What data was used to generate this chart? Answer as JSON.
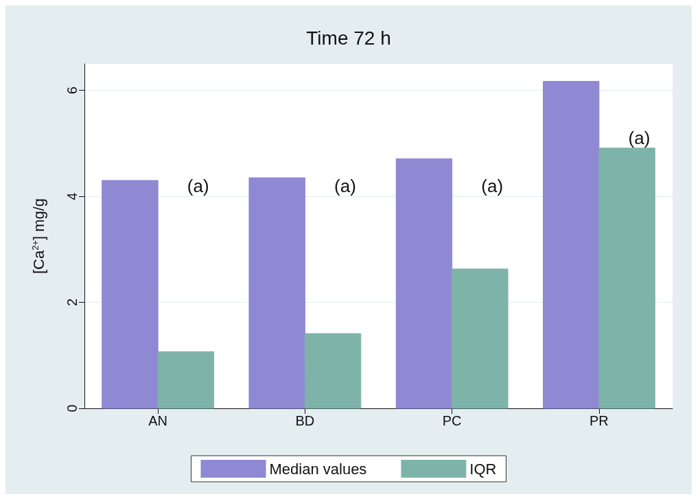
{
  "chart_data": {
    "type": "bar",
    "title": "Time 72 h",
    "ylabel": "[Ca$^{2+}$] mg/g",
    "categories": [
      "AN",
      "BD",
      "PC",
      "PR"
    ],
    "series": [
      {
        "name": "Median values",
        "color": "#8f88d2",
        "values": [
          4.3,
          4.35,
          4.71,
          6.17
        ]
      },
      {
        "name": "IQR",
        "color": "#7eb3aa",
        "values": [
          1.07,
          1.41,
          2.63,
          4.91
        ]
      }
    ],
    "ylim": [
      0,
      6.5
    ],
    "yticks": [
      0,
      2,
      4,
      6
    ],
    "grid": "y",
    "legend": "bottom",
    "annotations": [
      {
        "text": "(a)",
        "x": "AN",
        "y": 4.2
      },
      {
        "text": "(a)",
        "x": "BD",
        "y": 4.2
      },
      {
        "text": "(a)",
        "x": "PC",
        "y": 4.2
      },
      {
        "text": "(a)",
        "x": "PR",
        "y": 5.1
      }
    ]
  }
}
